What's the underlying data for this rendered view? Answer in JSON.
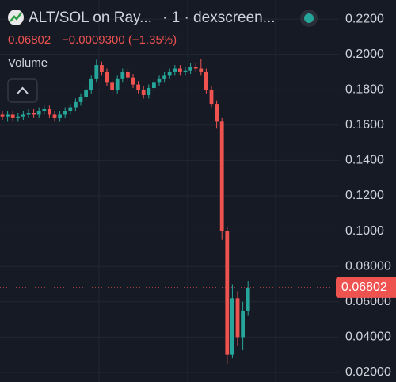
{
  "header": {
    "title": "ALT/SOL on Ray...",
    "source": "· 1 · dexscreen...",
    "price": "0.06802",
    "change": "−0.0009300 (−1.35%)",
    "volume_label": "Volume"
  },
  "chart_data": {
    "type": "candlestick",
    "open": [
      0.166,
      0.165,
      0.166,
      0.164,
      0.165,
      0.166,
      0.167,
      0.166,
      0.168,
      0.169,
      0.166,
      0.164,
      0.166,
      0.168,
      0.17,
      0.173,
      0.176,
      0.18,
      0.186,
      0.194,
      0.19,
      0.184,
      0.18,
      0.186,
      0.19,
      0.187,
      0.183,
      0.18,
      0.177,
      0.181,
      0.184,
      0.186,
      0.188,
      0.19,
      0.192,
      0.19,
      0.191,
      0.193,
      0.192,
      0.19,
      0.18,
      0.172,
      0.162,
      0.1,
      0.03,
      0.062,
      0.04,
      0.055
    ],
    "high": [
      0.168,
      0.168,
      0.168,
      0.167,
      0.168,
      0.169,
      0.169,
      0.17,
      0.171,
      0.171,
      0.168,
      0.168,
      0.17,
      0.172,
      0.175,
      0.178,
      0.182,
      0.188,
      0.197,
      0.196,
      0.192,
      0.186,
      0.188,
      0.192,
      0.192,
      0.189,
      0.185,
      0.182,
      0.183,
      0.186,
      0.188,
      0.19,
      0.192,
      0.194,
      0.194,
      0.193,
      0.195,
      0.195,
      0.1975,
      0.192,
      0.182,
      0.174,
      0.164,
      0.102,
      0.07,
      0.066,
      0.06,
      0.0715
    ],
    "low": [
      0.163,
      0.162,
      0.162,
      0.162,
      0.163,
      0.164,
      0.164,
      0.164,
      0.166,
      0.164,
      0.162,
      0.162,
      0.164,
      0.166,
      0.168,
      0.171,
      0.174,
      0.178,
      0.184,
      0.188,
      0.182,
      0.178,
      0.178,
      0.184,
      0.185,
      0.181,
      0.178,
      0.175,
      0.175,
      0.179,
      0.182,
      0.184,
      0.186,
      0.188,
      0.188,
      0.188,
      0.189,
      0.19,
      0.188,
      0.178,
      0.17,
      0.158,
      0.095,
      0.025,
      0.028,
      0.035,
      0.033,
      0.052
    ],
    "close": [
      0.165,
      0.166,
      0.164,
      0.165,
      0.166,
      0.167,
      0.166,
      0.168,
      0.169,
      0.166,
      0.164,
      0.166,
      0.168,
      0.17,
      0.173,
      0.176,
      0.18,
      0.186,
      0.194,
      0.19,
      0.184,
      0.18,
      0.186,
      0.19,
      0.187,
      0.183,
      0.18,
      0.177,
      0.181,
      0.184,
      0.186,
      0.188,
      0.19,
      0.192,
      0.19,
      0.191,
      0.193,
      0.192,
      0.19,
      0.18,
      0.172,
      0.162,
      0.1,
      0.03,
      0.062,
      0.04,
      0.055,
      0.068
    ],
    "up_color": "#26a69a",
    "down_color": "#ef5350",
    "ylim": [
      0.0146,
      0.2308
    ],
    "yticks": [
      {
        "value": 0.22,
        "label": "0.2200"
      },
      {
        "value": 0.2,
        "label": "0.2000"
      },
      {
        "value": 0.18,
        "label": "0.1800"
      },
      {
        "value": 0.16,
        "label": "0.1600"
      },
      {
        "value": 0.14,
        "label": "0.1400"
      },
      {
        "value": 0.12,
        "label": "0.1200"
      },
      {
        "value": 0.1,
        "label": "0.1000"
      },
      {
        "value": 0.08,
        "label": "0.08000"
      },
      {
        "value": 0.06,
        "label": "0.06000"
      },
      {
        "value": 0.04,
        "label": "0.04000"
      },
      {
        "value": 0.02,
        "label": "0.02000"
      }
    ],
    "last_price": {
      "value": 0.06802,
      "label": "0.06802"
    },
    "grid": true
  }
}
